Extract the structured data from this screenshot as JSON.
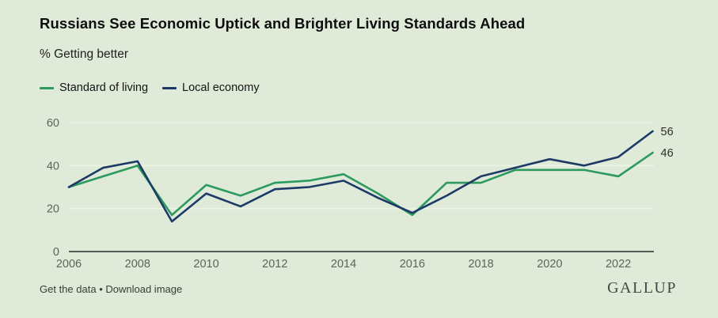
{
  "header": {
    "title": "Russians See Economic Uptick and Brighter Living Standards Ahead",
    "subtitle": "% Getting better"
  },
  "legend": {
    "items": [
      {
        "label": "Standard of living",
        "color": "#2c9a5c"
      },
      {
        "label": "Local economy",
        "color": "#1d3a67"
      }
    ]
  },
  "chart_data": {
    "type": "line",
    "x": [
      2006,
      2007,
      2008,
      2009,
      2010,
      2011,
      2012,
      2013,
      2014,
      2015,
      2016,
      2017,
      2018,
      2019,
      2020,
      2021,
      2022,
      2023
    ],
    "series": [
      {
        "name": "Standard of living",
        "color": "#2c9a5c",
        "values": [
          30,
          35,
          40,
          17,
          31,
          26,
          32,
          33,
          36,
          27,
          17,
          32,
          32,
          38,
          38,
          38,
          35,
          46
        ],
        "end_label": "46"
      },
      {
        "name": "Local economy",
        "color": "#1d3a67",
        "values": [
          30,
          39,
          42,
          14,
          27,
          21,
          29,
          30,
          33,
          25,
          18,
          26,
          35,
          39,
          43,
          40,
          44,
          56
        ],
        "end_label": "56"
      }
    ],
    "title": "Russians See Economic Uptick and Brighter Living Standards Ahead",
    "subtitle": "% Getting better",
    "xlabel": "",
    "ylabel": "",
    "xticks": [
      2006,
      2008,
      2010,
      2012,
      2014,
      2016,
      2018,
      2020,
      2022
    ],
    "yticks": [
      0,
      20,
      40,
      60
    ],
    "ylim": [
      0,
      60
    ],
    "xlim": [
      2006,
      2023
    ],
    "grid": true,
    "legend_position": "top-left"
  },
  "footer": {
    "link_get_data": "Get the data",
    "separator": "•",
    "link_download": "Download image",
    "brand": "GALLUP"
  },
  "colors": {
    "background": "#dfead8",
    "gridline": "#eef4e8",
    "axis": "#2b2b2b",
    "tick_label": "#5d645e",
    "end_label": "#2e2e2e"
  }
}
